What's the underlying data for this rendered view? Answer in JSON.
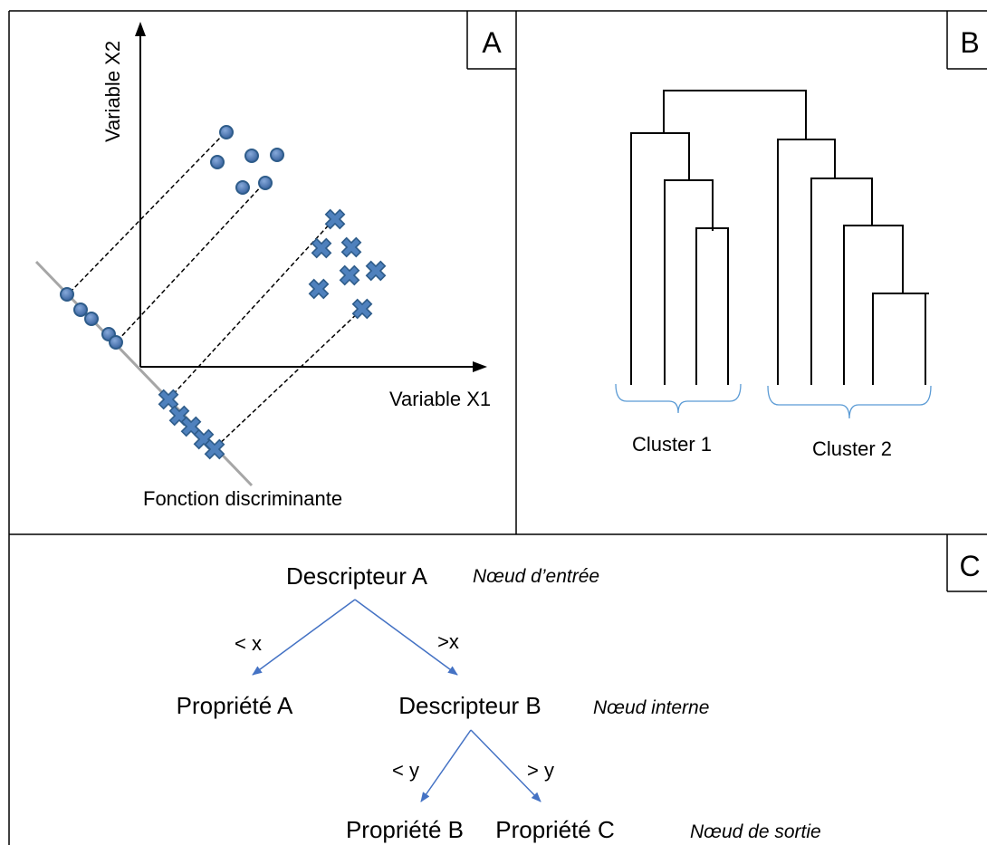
{
  "figure": {
    "panel_a": {
      "label": "A",
      "x_axis_label": "Variable X1",
      "y_axis_label": "Variable X2",
      "projection_line_label": "Fonction discriminante"
    },
    "panel_b": {
      "label": "B",
      "cluster_1_label": "Cluster 1",
      "cluster_2_label": "Cluster 2"
    },
    "panel_c": {
      "label": "C",
      "nodes": {
        "root": "Descripteur A",
        "left_leaf": "Propriété A",
        "internal": "Descripteur B",
        "leaf_b": "Propriété B",
        "leaf_c": "Propriété C"
      },
      "edges": {
        "root_left": "< x",
        "root_right": ">x",
        "internal_left": "< y",
        "internal_right": "> y"
      },
      "node_types": {
        "input": "Nœud d’entrée",
        "internal": "Nœud interne",
        "output": "Nœud de sortie"
      }
    }
  },
  "colors": {
    "frame": "#000000",
    "marker_fill": "#4F81BD",
    "marker_stroke": "#2E5C8A",
    "discriminant_line": "#A6A6A6",
    "tree_arrow": "#4472C4",
    "cluster_brace": "#5B9BD5"
  }
}
